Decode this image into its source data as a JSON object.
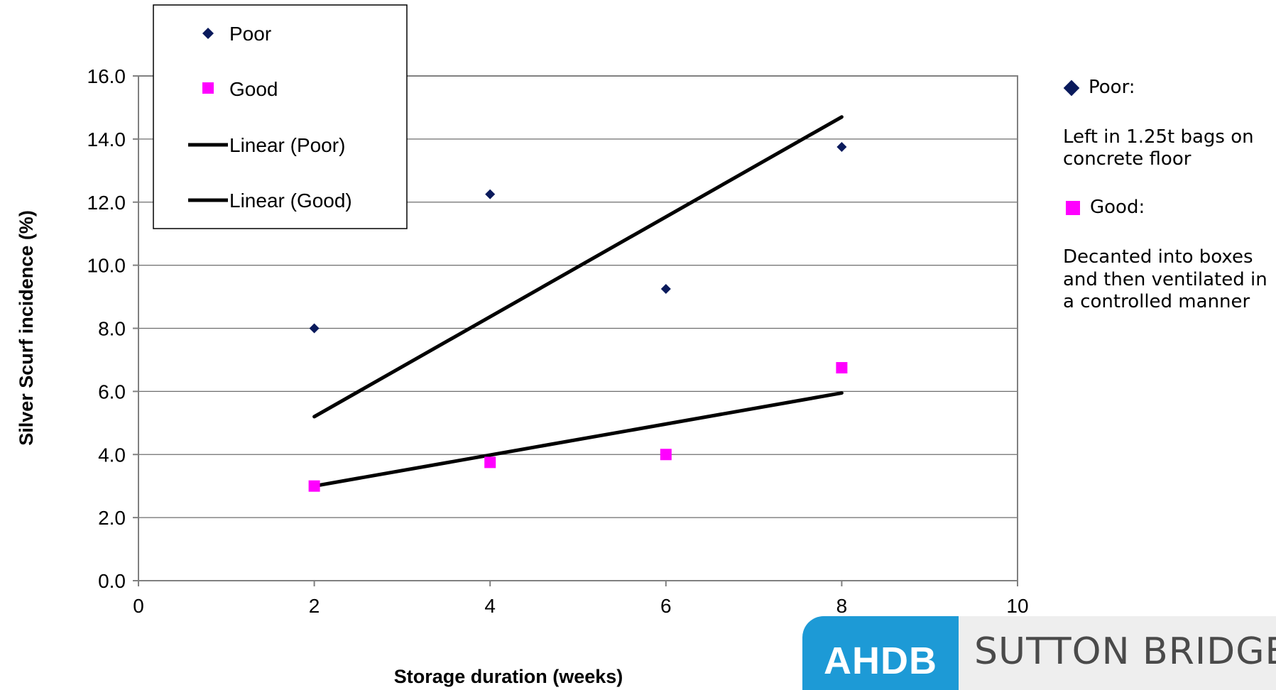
{
  "chart_data": {
    "type": "scatter",
    "xlabel": "Storage duration (weeks)",
    "ylabel": "Silver Scurf incidence (%)",
    "xlim": [
      0,
      10
    ],
    "ylim": [
      0,
      16
    ],
    "x_ticks": [
      "0",
      "2",
      "4",
      "6",
      "8",
      "10"
    ],
    "y_ticks": [
      "0.0",
      "2.0",
      "4.0",
      "6.0",
      "8.0",
      "10.0",
      "12.0",
      "14.0",
      "16.0"
    ],
    "grid": "horizontal",
    "legend_position": "top-left",
    "series": [
      {
        "name": "Poor",
        "marker": "diamond",
        "color": "#0a1a5c",
        "x": [
          2,
          4,
          6,
          8
        ],
        "y": [
          8.0,
          12.25,
          9.25,
          13.75
        ]
      },
      {
        "name": "Good",
        "marker": "square",
        "color": "#ff00ff",
        "x": [
          2,
          4,
          6,
          8
        ],
        "y": [
          3.0,
          3.75,
          4.0,
          6.75
        ]
      }
    ],
    "trendlines": [
      {
        "name": "Linear (Poor)",
        "color": "#000000",
        "x": [
          2,
          8
        ],
        "y": [
          5.2,
          14.7
        ]
      },
      {
        "name": "Linear (Good)",
        "color": "#000000",
        "x": [
          2,
          8
        ],
        "y": [
          3.0,
          5.95
        ]
      }
    ]
  },
  "side_note": {
    "poor_heading": "Poor:",
    "poor_text": "Left in 1.25t bags on concrete floor",
    "good_heading": "Good:",
    "good_text": "Decanted into boxes and then ventilated in a controlled manner"
  },
  "logo": {
    "left_text": "AHDB",
    "right_text": "SUTTON BRIDGE"
  }
}
